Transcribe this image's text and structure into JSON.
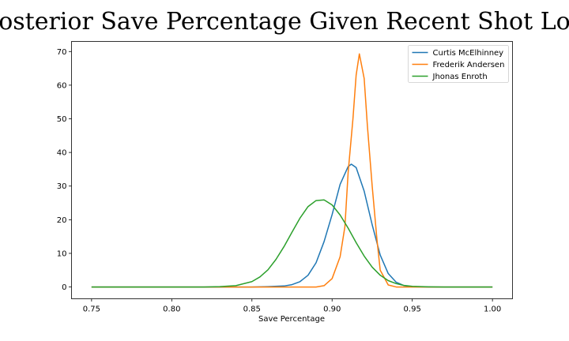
{
  "chart_data": {
    "type": "line",
    "title": "Posterior Save Percentage Given Recent Shot Load",
    "xlabel": "Save Percentage",
    "ylabel": "",
    "xlim": [
      0.7375,
      1.0125
    ],
    "ylim": [
      -3.5,
      73
    ],
    "xticks": [
      "0.75",
      "0.80",
      "0.85",
      "0.90",
      "0.95",
      "1.00"
    ],
    "yticks": [
      "0",
      "10",
      "20",
      "30",
      "40",
      "50",
      "60",
      "70"
    ],
    "grid": false,
    "legend_position": "upper right",
    "series": [
      {
        "name": "Curtis McElhinney",
        "color": "#1f77b4",
        "x": [
          0.75,
          0.85,
          0.86,
          0.87,
          0.875,
          0.88,
          0.885,
          0.89,
          0.895,
          0.9,
          0.905,
          0.91,
          0.912,
          0.915,
          0.92,
          0.925,
          0.93,
          0.935,
          0.94,
          0.945,
          0.95,
          0.96,
          1.0
        ],
        "y": [
          0,
          0,
          0.1,
          0.3,
          0.7,
          1.6,
          3.5,
          7.2,
          13.5,
          21.5,
          30.5,
          35.8,
          36.5,
          35.5,
          28.5,
          18.5,
          9.5,
          4.0,
          1.4,
          0.4,
          0.1,
          0,
          0
        ]
      },
      {
        "name": "Frederik Andersen",
        "color": "#ff7f0e",
        "x": [
          0.75,
          0.89,
          0.895,
          0.9,
          0.905,
          0.908,
          0.91,
          0.913,
          0.915,
          0.917,
          0.92,
          0.922,
          0.925,
          0.928,
          0.93,
          0.935,
          0.94,
          1.0
        ],
        "y": [
          0,
          0,
          0.4,
          2.5,
          9,
          18,
          34,
          50,
          63,
          69.3,
          62,
          48,
          30,
          14,
          5,
          0.6,
          0,
          0
        ]
      },
      {
        "name": "Jhonas Enroth",
        "color": "#2ca02c",
        "x": [
          0.75,
          0.82,
          0.83,
          0.84,
          0.85,
          0.855,
          0.86,
          0.865,
          0.87,
          0.875,
          0.88,
          0.885,
          0.89,
          0.895,
          0.9,
          0.905,
          0.91,
          0.915,
          0.92,
          0.925,
          0.93,
          0.935,
          0.94,
          0.945,
          0.95,
          0.96,
          0.97,
          1.0
        ],
        "y": [
          0,
          0,
          0.1,
          0.4,
          1.6,
          3.0,
          5.1,
          8.2,
          12.0,
          16.3,
          20.5,
          23.9,
          25.7,
          25.9,
          24.4,
          21.4,
          17.5,
          13.2,
          9.2,
          5.9,
          3.5,
          1.9,
          1.0,
          0.45,
          0.2,
          0.05,
          0,
          0
        ]
      }
    ]
  }
}
